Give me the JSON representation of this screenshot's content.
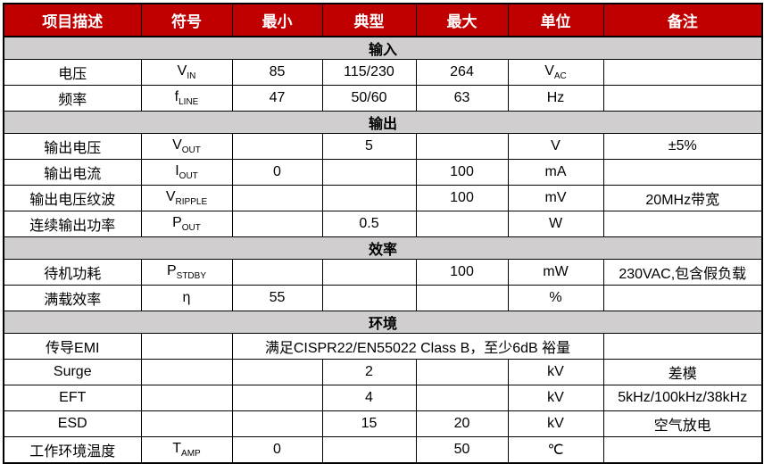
{
  "colors": {
    "header_bg": "#C00000",
    "header_text": "#FFFFFF",
    "band_bg": "#D0CECE",
    "border": "#000000",
    "row_bg": "#FFFFFF"
  },
  "table": {
    "columns": [
      "项目描述",
      "符号",
      "最小",
      "典型",
      "最大",
      "单位",
      "备注"
    ],
    "sections": [
      {
        "label": "输入",
        "rows": [
          {
            "item": "电压",
            "sym": "V",
            "sym_sub": "IN",
            "min": "85",
            "typ": "115/230",
            "max": "264",
            "unit": "V",
            "unit_sub": "AC",
            "note": ""
          },
          {
            "item": "频率",
            "sym": "f",
            "sym_sub": "LINE",
            "min": "47",
            "typ": "50/60",
            "max": "63",
            "unit": "Hz",
            "unit_sub": "",
            "note": ""
          }
        ]
      },
      {
        "label": "输出",
        "rows": [
          {
            "item": "输出电压",
            "sym": "V",
            "sym_sub": "OUT",
            "min": "",
            "typ": "5",
            "max": "",
            "unit": "V",
            "unit_sub": "",
            "note": "±5%"
          },
          {
            "item": "输出电流",
            "sym": "I",
            "sym_sub": "OUT",
            "min": "0",
            "typ": "",
            "max": "100",
            "unit": "mA",
            "unit_sub": "",
            "note": ""
          },
          {
            "item": "输出电压纹波",
            "sym": "V",
            "sym_sub": "RIPPLE",
            "min": "",
            "typ": "",
            "max": "100",
            "unit": "mV",
            "unit_sub": "",
            "note": "20MHz带宽"
          },
          {
            "item": "连续输出功率",
            "sym": "P",
            "sym_sub": "OUT",
            "min": "",
            "typ": "0.5",
            "max": "",
            "unit": "W",
            "unit_sub": "",
            "note": ""
          }
        ]
      },
      {
        "label": "效率",
        "rows": [
          {
            "item": "待机功耗",
            "sym": "P",
            "sym_sub": "STDBY",
            "min": "",
            "typ": "",
            "max": "100",
            "unit": "mW",
            "unit_sub": "",
            "note": "230VAC,包含假负载"
          },
          {
            "item": "满载效率",
            "sym": "η",
            "sym_sub": "",
            "min": "55",
            "typ": "",
            "max": "",
            "unit": "%",
            "unit_sub": "",
            "note": ""
          }
        ]
      },
      {
        "label": "环境",
        "rows": [
          {
            "item": "传导EMI",
            "sym": "",
            "sym_sub": "",
            "merged": "满足CISPR22/EN55022 Class B，至少6dB 裕量",
            "note": ""
          },
          {
            "item": "Surge",
            "sym": "",
            "sym_sub": "",
            "min": "",
            "typ": "2",
            "max": "",
            "unit": "kV",
            "unit_sub": "",
            "note": "差模"
          },
          {
            "item": "EFT",
            "sym": "",
            "sym_sub": "",
            "min": "",
            "typ": "4",
            "max": "",
            "unit": "kV",
            "unit_sub": "",
            "note": "5kHz/100kHz/38kHz"
          },
          {
            "item": "ESD",
            "sym": "",
            "sym_sub": "",
            "min": "",
            "typ": "15",
            "max": "20",
            "unit": "kV",
            "unit_sub": "",
            "note": "空气放电"
          },
          {
            "item": "工作环境温度",
            "sym": "T",
            "sym_sub": "AMP",
            "min": "0",
            "typ": "",
            "max": "50",
            "unit": "℃",
            "unit_sub": "",
            "note": ""
          }
        ]
      }
    ]
  }
}
